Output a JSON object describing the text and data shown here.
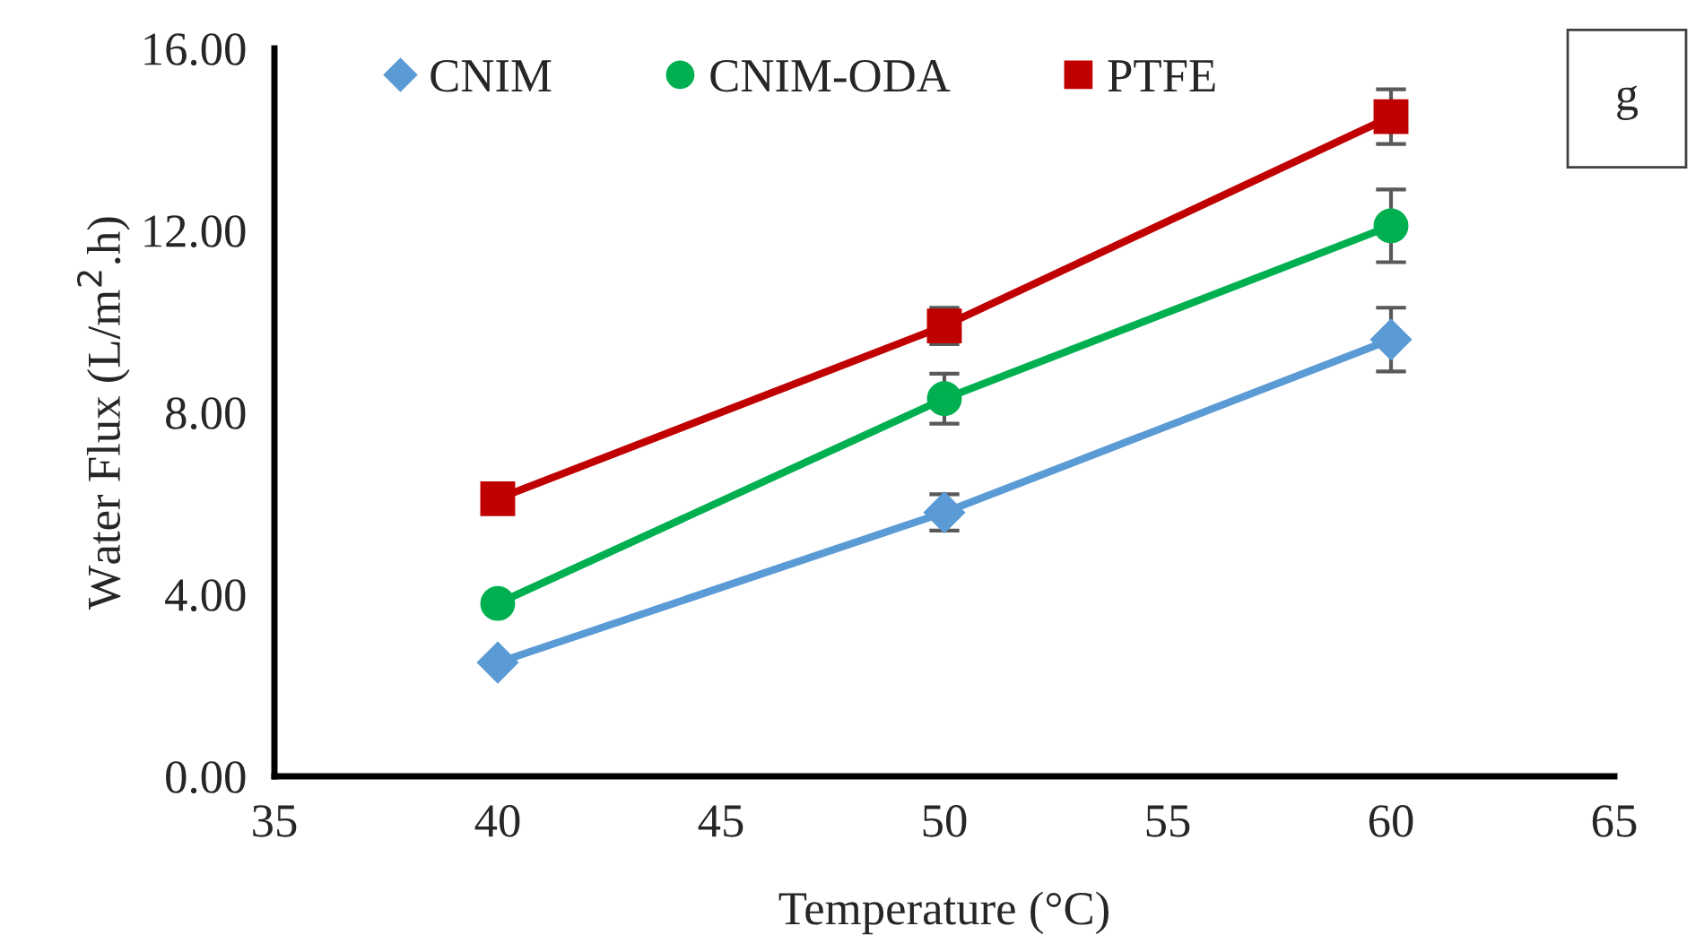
{
  "chart_data": {
    "type": "line",
    "xlabel": "Temperature (°C)",
    "ylabel": "Water Flux (L/m$^{2}$.h)",
    "x": [
      40,
      50,
      60
    ],
    "series": [
      {
        "name": "CNIM",
        "color": "#5b9bd5",
        "marker": "diamond",
        "values": [
          2.5,
          5.8,
          9.6
        ],
        "errors": [
          null,
          0.4,
          0.7
        ]
      },
      {
        "name": "CNIM-ODA",
        "color": "#00b050",
        "marker": "circle",
        "values": [
          3.8,
          8.3,
          12.1
        ],
        "errors": [
          null,
          0.55,
          0.8
        ]
      },
      {
        "name": "PTFE",
        "color": "#c00000",
        "marker": "square",
        "values": [
          6.1,
          9.9,
          14.5
        ],
        "errors": [
          null,
          0.4,
          0.6
        ]
      }
    ],
    "xlim": [
      35,
      65
    ],
    "xticks": [
      35,
      40,
      45,
      50,
      55,
      60,
      65
    ],
    "ylim": [
      0,
      16
    ],
    "yticks": [
      {
        "value": 0,
        "label": "0.00"
      },
      {
        "value": 4,
        "label": "4.00"
      },
      {
        "value": 8,
        "label": "8.00"
      },
      {
        "value": 12,
        "label": "12.00"
      },
      {
        "value": 16,
        "label": "16.00"
      }
    ],
    "annotations": [
      "g"
    ],
    "legend": "top",
    "grid": false,
    "line_style": "solid"
  }
}
